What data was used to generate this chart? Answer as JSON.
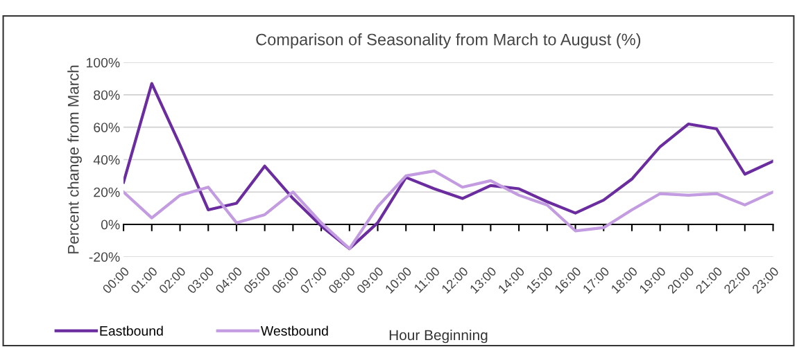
{
  "chart_data": {
    "type": "line",
    "title": "Comparison of Seasonality from March to August (%)",
    "xlabel": "Hour Beginning",
    "ylabel": "Percent change from March",
    "categories": [
      "00:00",
      "01:00",
      "02:00",
      "03:00",
      "04:00",
      "05:00",
      "06:00",
      "07:00",
      "08:00",
      "09:00",
      "10:00",
      "11:00",
      "12:00",
      "13:00",
      "14:00",
      "15:00",
      "16:00",
      "17:00",
      "18:00",
      "19:00",
      "20:00",
      "21:00",
      "22:00",
      "23:00"
    ],
    "series": [
      {
        "name": "Eastbound",
        "color": "#6a2c9f",
        "values": [
          26,
          87,
          49,
          9,
          13,
          36,
          16,
          -1,
          -15,
          1,
          29,
          22,
          16,
          24,
          22,
          14,
          7,
          15,
          28,
          48,
          62,
          59,
          31,
          39
        ]
      },
      {
        "name": "Westbound",
        "color": "#c39be0",
        "values": [
          20,
          4,
          18,
          23,
          1,
          6,
          20,
          1,
          -15,
          11,
          30,
          33,
          23,
          27,
          18,
          12,
          -4,
          -2,
          9,
          19,
          18,
          19,
          12,
          20
        ]
      }
    ],
    "ylim": [
      -20,
      100
    ],
    "yticks": [
      {
        "value": -20,
        "label": "-20%"
      },
      {
        "value": 0,
        "label": "0%"
      },
      {
        "value": 20,
        "label": "20%"
      },
      {
        "value": 40,
        "label": "40%"
      },
      {
        "value": 60,
        "label": "60%"
      },
      {
        "value": 80,
        "label": "80%"
      },
      {
        "value": 100,
        "label": "100%"
      }
    ],
    "grid": "y",
    "legend": "bottom left",
    "marker": "none",
    "line_style": "solid"
  }
}
